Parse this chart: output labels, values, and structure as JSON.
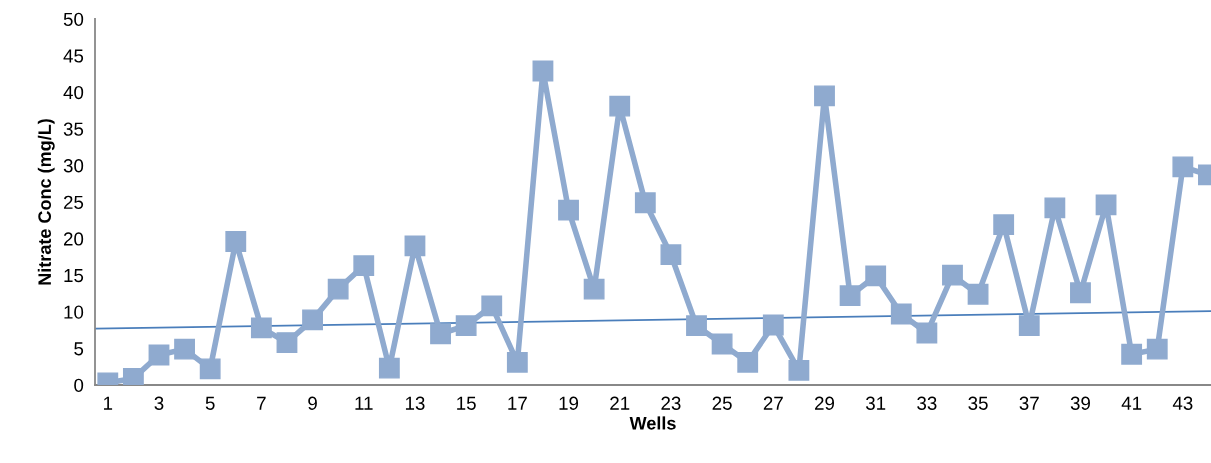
{
  "chart_data": {
    "type": "line",
    "xlabel": "Wells",
    "ylabel": "Nitrate Conc (mg/L)",
    "xlim": [
      0.5,
      44.1
    ],
    "xticks": [
      1,
      3,
      5,
      7,
      9,
      11,
      13,
      15,
      17,
      19,
      21,
      23,
      25,
      27,
      29,
      31,
      33,
      35,
      37,
      39,
      41,
      43
    ],
    "ylim": [
      0,
      50
    ],
    "yticks": [
      0,
      5,
      10,
      15,
      20,
      25,
      30,
      35,
      40,
      45,
      50
    ],
    "grid": false,
    "series": [
      {
        "color": "#8faacf",
        "marker": "square",
        "line_style": "solid",
        "x": [
          1,
          2,
          3,
          4,
          5,
          6,
          7,
          8,
          9,
          10,
          11,
          12,
          13,
          14,
          15,
          16,
          17,
          18,
          19,
          20,
          21,
          22,
          23,
          24,
          25,
          26,
          27,
          28,
          29,
          30,
          31,
          32,
          33,
          34,
          35,
          36,
          37,
          38,
          39,
          40,
          41,
          42,
          43,
          44
        ],
        "values": [
          0.3,
          0.9,
          4.1,
          4.9,
          2.2,
          19.6,
          7.8,
          5.8,
          8.9,
          13.1,
          16.3,
          2.3,
          19.0,
          7.0,
          8.1,
          10.8,
          3.1,
          42.9,
          23.9,
          13.1,
          38.1,
          24.9,
          17.8,
          8.1,
          5.6,
          3.1,
          8.2,
          2.0,
          39.5,
          12.2,
          14.9,
          9.7,
          7.1,
          15.0,
          12.4,
          21.9,
          8.1,
          24.2,
          12.6,
          24.6,
          4.2,
          4.9,
          29.8,
          28.7
        ]
      },
      {
        "color": "#4a7ebb",
        "marker": "none",
        "line_style": "solid",
        "x": [
          0.5,
          44.1
        ],
        "values": [
          7.7,
          10.1
        ]
      }
    ]
  }
}
